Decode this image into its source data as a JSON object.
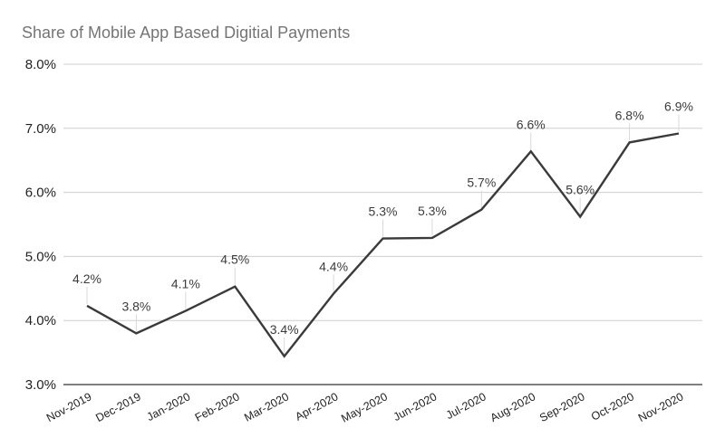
{
  "chart_data": {
    "type": "line",
    "title": "Share of Mobile App Based Digitial Payments",
    "xlabel": "",
    "ylabel": "",
    "categories": [
      "Nov-2019",
      "Dec-2019",
      "Jan-2020",
      "Feb-2020",
      "Mar-2020",
      "Apr-2020",
      "May-2020",
      "Jun-2020",
      "Jul-2020",
      "Aug-2020",
      "Sep-2020",
      "Oct-2020",
      "Nov-2020"
    ],
    "values": [
      4.23,
      3.8,
      4.15,
      4.53,
      3.44,
      4.42,
      5.28,
      5.29,
      5.73,
      6.64,
      5.62,
      6.78,
      6.92
    ],
    "data_labels": [
      "4.2%",
      "3.8%",
      "4.1%",
      "4.5%",
      "3.4%",
      "4.4%",
      "5.3%",
      "5.3%",
      "5.7%",
      "6.6%",
      "5.6%",
      "6.8%",
      "6.9%"
    ],
    "ylim": [
      3.0,
      8.0
    ],
    "yticks": [
      "3.0%",
      "4.0%",
      "5.0%",
      "6.0%",
      "7.0%",
      "8.0%"
    ],
    "grid": true,
    "legend": "none",
    "colors": {
      "line": "#3a3a3a",
      "grid": "#cfcfcf",
      "title": "#757575"
    }
  }
}
